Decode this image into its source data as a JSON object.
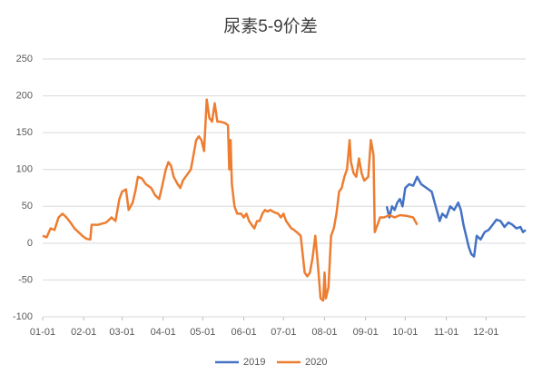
{
  "chart_data": {
    "type": "line",
    "title": "尿素5-9价差",
    "xlim": [
      0,
      365
    ],
    "xticks": [
      {
        "value": 0,
        "label": "01-01"
      },
      {
        "value": 31,
        "label": "02-01"
      },
      {
        "value": 60,
        "label": "03-01"
      },
      {
        "value": 91,
        "label": "04-01"
      },
      {
        "value": 121,
        "label": "05-01"
      },
      {
        "value": 152,
        "label": "06-01"
      },
      {
        "value": 182,
        "label": "07-01"
      },
      {
        "value": 213,
        "label": "08-01"
      },
      {
        "value": 244,
        "label": "09-01"
      },
      {
        "value": 274,
        "label": "10-01"
      },
      {
        "value": 305,
        "label": "11-01"
      },
      {
        "value": 335,
        "label": "12-01"
      }
    ],
    "ylim": [
      -100,
      250
    ],
    "yticks": [
      -100,
      -50,
      0,
      50,
      100,
      150,
      200,
      250
    ],
    "grid": true,
    "legend": "bottom",
    "series": [
      {
        "name": "2019",
        "color": "#4472c4",
        "x": [
          260,
          262,
          264,
          266,
          268,
          270,
          272,
          274,
          277,
          280,
          283,
          286,
          290,
          294,
          297,
          300,
          302,
          305,
          308,
          311,
          314,
          316,
          318,
          320,
          322,
          324,
          326,
          328,
          331,
          334,
          337,
          340,
          343,
          346,
          349,
          352,
          355,
          358,
          361,
          363,
          365
        ],
        "values": [
          50,
          35,
          50,
          45,
          55,
          60,
          50,
          75,
          80,
          78,
          90,
          80,
          75,
          70,
          50,
          30,
          40,
          35,
          50,
          45,
          55,
          45,
          25,
          10,
          -5,
          -15,
          -18,
          10,
          5,
          15,
          18,
          25,
          32,
          30,
          22,
          28,
          25,
          20,
          22,
          15,
          18
        ]
      },
      {
        "name": "2020",
        "color": "#ed7d31",
        "x": [
          0,
          3,
          6,
          9,
          12,
          15,
          18,
          21,
          24,
          27,
          30,
          33,
          36,
          37,
          42,
          48,
          52,
          55,
          58,
          60,
          63,
          65,
          68,
          70,
          72,
          75,
          78,
          82,
          85,
          88,
          90,
          93,
          95,
          97,
          99,
          102,
          104,
          106,
          108,
          110,
          112,
          114,
          116,
          118,
          120,
          122,
          124,
          126,
          128,
          130,
          132,
          134,
          138,
          140,
          141,
          142,
          143,
          145,
          147,
          150,
          152,
          154,
          156,
          158,
          160,
          162,
          164,
          166,
          168,
          170,
          172,
          175,
          178,
          180,
          182,
          184,
          186,
          188,
          190,
          192,
          195,
          198,
          200,
          202,
          204,
          206,
          208,
          210,
          212,
          213,
          214,
          216,
          218,
          220,
          222,
          224,
          226,
          228,
          230,
          232,
          233,
          235,
          237,
          239,
          241,
          243,
          246,
          248,
          250,
          251,
          253,
          255,
          258,
          262,
          266,
          270,
          275,
          280,
          283
        ],
        "values": [
          10,
          8,
          20,
          18,
          35,
          40,
          35,
          28,
          20,
          15,
          10,
          6,
          5,
          25,
          25,
          28,
          35,
          30,
          60,
          70,
          73,
          45,
          55,
          70,
          90,
          88,
          80,
          75,
          65,
          60,
          75,
          100,
          110,
          105,
          90,
          80,
          75,
          85,
          90,
          95,
          100,
          120,
          140,
          145,
          140,
          125,
          195,
          170,
          165,
          190,
          165,
          165,
          163,
          160,
          100,
          140,
          80,
          50,
          40,
          40,
          35,
          40,
          30,
          25,
          20,
          30,
          30,
          40,
          45,
          43,
          45,
          42,
          40,
          35,
          40,
          30,
          25,
          20,
          18,
          15,
          10,
          -40,
          -45,
          -40,
          -20,
          10,
          -30,
          -75,
          -78,
          -40,
          -75,
          -60,
          10,
          20,
          40,
          70,
          75,
          90,
          100,
          140,
          110,
          95,
          90,
          115,
          95,
          85,
          90,
          140,
          120,
          15,
          25,
          35,
          35,
          38,
          35,
          38,
          37,
          35,
          25
        ]
      }
    ]
  }
}
